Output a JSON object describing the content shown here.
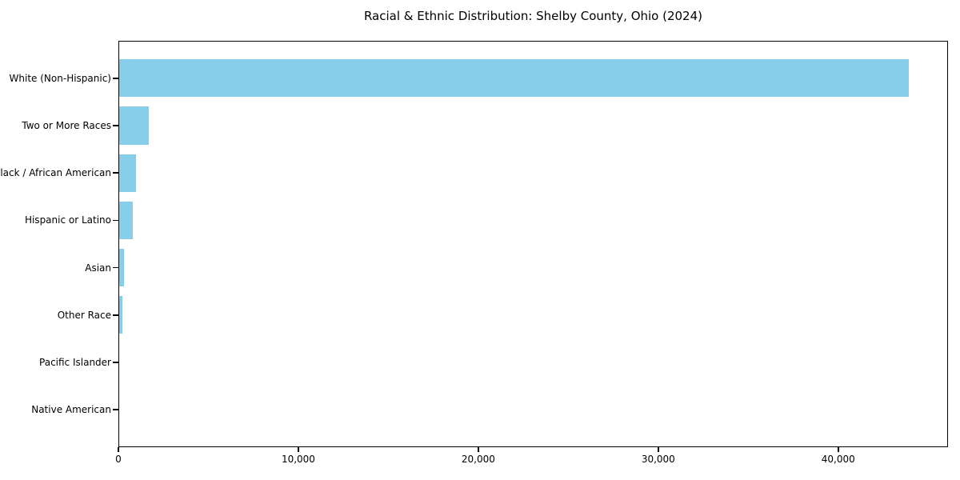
{
  "chart_data": {
    "type": "bar",
    "orientation": "horizontal",
    "title": "Racial & Ethnic Distribution: Shelby County, Ohio (2024)",
    "categories": [
      "White (Non-Hispanic)",
      "Two or More Races",
      "Black / African American",
      "Hispanic or Latino",
      "Asian",
      "Other Race",
      "Pacific Islander",
      "Native American"
    ],
    "values": [
      43900,
      1700,
      1000,
      800,
      330,
      220,
      0,
      0
    ],
    "xlabel": "",
    "ylabel": "",
    "xlim": [
      0,
      46100
    ],
    "xtick_values": [
      0,
      10000,
      20000,
      30000,
      40000
    ],
    "xtick_labels": [
      "0",
      "10,000",
      "20,000",
      "30,000",
      "40,000"
    ],
    "bar_color": "#87ceeb",
    "text_color": "#000000",
    "spine_color": "#000000",
    "background_color": "#ffffff",
    "grid": false,
    "legend": null
  }
}
